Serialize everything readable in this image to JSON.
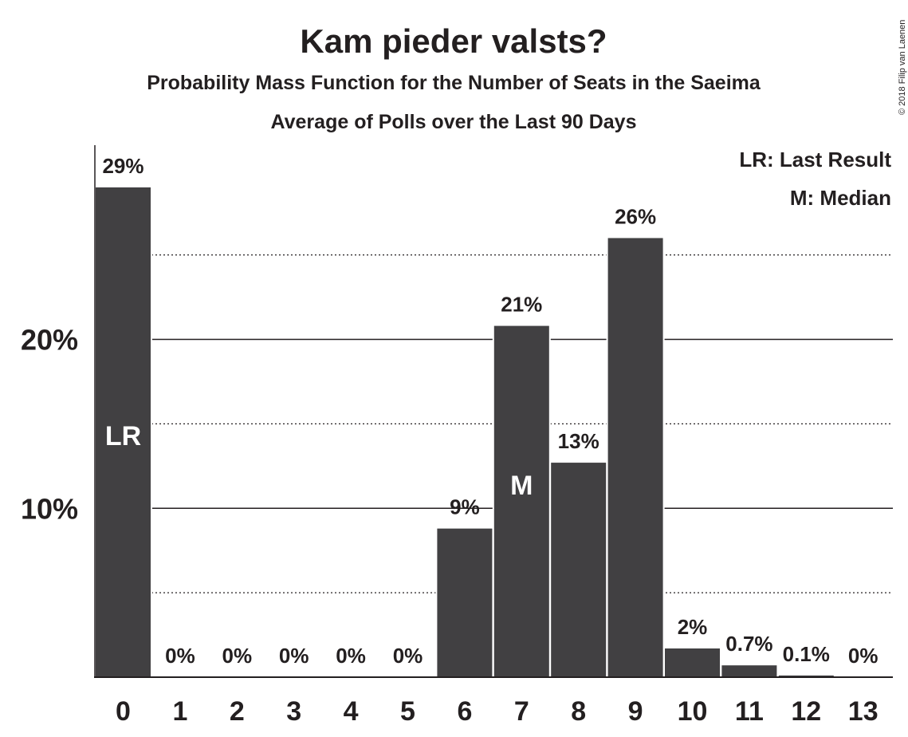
{
  "title": "Kam pieder valsts?",
  "subtitle1": "Probability Mass Function for the Number of Seats in the Saeima",
  "subtitle2": "Average of Polls over the Last 90 Days",
  "legend": {
    "lr": "LR: Last Result",
    "m": "M: Median"
  },
  "copyright": "© 2018 Filip van Laenen",
  "colors": {
    "bar": "#414042",
    "text": "#231f20",
    "inlabel": "#ffffff"
  },
  "chart_data": {
    "type": "bar",
    "categories": [
      "0",
      "1",
      "2",
      "3",
      "4",
      "5",
      "6",
      "7",
      "8",
      "9",
      "10",
      "11",
      "12",
      "13"
    ],
    "values": [
      29,
      0,
      0,
      0,
      0,
      0,
      8.8,
      20.8,
      12.7,
      26,
      1.7,
      0.7,
      0.1,
      0
    ],
    "data_labels": [
      "29%",
      "0%",
      "0%",
      "0%",
      "0%",
      "0%",
      "9%",
      "21%",
      "13%",
      "26%",
      "2%",
      "0.7%",
      "0.1%",
      "0%"
    ],
    "in_bar_labels": [
      {
        "index": 0,
        "text": "LR"
      },
      {
        "index": 7,
        "text": "M"
      }
    ],
    "y_ticks": [
      {
        "value": 10,
        "label": "10%"
      },
      {
        "value": 20,
        "label": "20%"
      }
    ],
    "minor_gridlines": [
      5,
      15,
      25
    ],
    "ylim": [
      0,
      31.5
    ],
    "grid": true,
    "legend_position": "top-right"
  }
}
